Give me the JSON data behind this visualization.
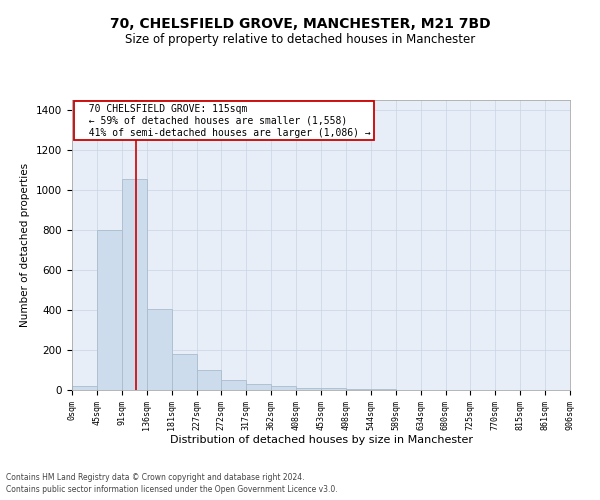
{
  "title_line1": "70, CHELSFIELD GROVE, MANCHESTER, M21 7BD",
  "title_line2": "Size of property relative to detached houses in Manchester",
  "xlabel": "Distribution of detached houses by size in Manchester",
  "ylabel": "Number of detached properties",
  "footer_line1": "Contains HM Land Registry data © Crown copyright and database right 2024.",
  "footer_line2": "Contains public sector information licensed under the Open Government Licence v3.0.",
  "annotation_line1": "70 CHELSFIELD GROVE: 115sqm",
  "annotation_line2": "← 59% of detached houses are smaller (1,558)",
  "annotation_line3": "41% of semi-detached houses are larger (1,086) →",
  "bar_color": "#ccdcec",
  "bar_edge_color": "#aabccc",
  "red_line_x": 115,
  "bin_width": 45,
  "bin_starts": [
    0,
    45,
    90,
    135,
    180,
    225,
    270,
    315,
    360,
    405,
    450,
    495,
    540,
    585,
    630,
    675,
    720,
    765,
    810,
    855
  ],
  "bar_heights": [
    20,
    800,
    1055,
    405,
    182,
    100,
    48,
    30,
    18,
    10,
    8,
    5,
    3,
    1,
    1,
    0,
    0,
    0,
    0,
    0
  ],
  "ylim": [
    0,
    1450
  ],
  "yticks": [
    0,
    200,
    400,
    600,
    800,
    1000,
    1200,
    1400
  ],
  "xtick_labels": [
    "0sqm",
    "45sqm",
    "91sqm",
    "136sqm",
    "181sqm",
    "227sqm",
    "272sqm",
    "317sqm",
    "362sqm",
    "408sqm",
    "453sqm",
    "498sqm",
    "544sqm",
    "589sqm",
    "634sqm",
    "680sqm",
    "725sqm",
    "770sqm",
    "815sqm",
    "861sqm",
    "906sqm"
  ],
  "background_color": "#ffffff",
  "plot_bg_color": "#e8eef8",
  "grid_color": "#c8d4e4",
  "annotation_box_facecolor": "#ffffff",
  "annotation_box_edgecolor": "#cc0000",
  "red_line_color": "#cc0000",
  "title1_fontsize": 10,
  "title2_fontsize": 8.5,
  "ylabel_fontsize": 7.5,
  "xlabel_fontsize": 8,
  "ytick_fontsize": 7.5,
  "xtick_fontsize": 6,
  "ann_fontsize": 7,
  "footer_fontsize": 5.5
}
